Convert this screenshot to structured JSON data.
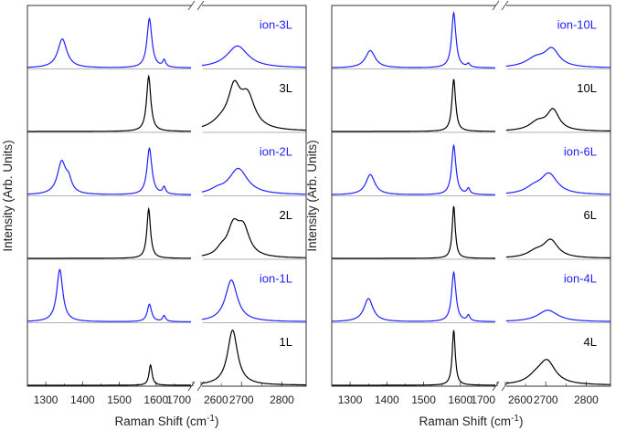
{
  "chart_data": [
    {
      "type": "line",
      "panel": "left",
      "xlabel": "Raman Shift (cm-1)",
      "xlabel_main": "Raman Shift (cm",
      "xlabel_sup": "-1",
      "xlabel_close": ")",
      "ylabel": "Intensity (Arb. Units)",
      "x_segments": [
        [
          1250,
          1700
        ],
        [
          2600,
          2860
        ]
      ],
      "axis_break": true,
      "x_ticks": [
        "1300",
        "1400",
        "1500",
        "1600",
        "1700",
        "2600",
        "2700",
        "2800"
      ],
      "x_tick_values": [
        1300,
        1400,
        1500,
        1600,
        1700,
        2600,
        2700,
        2800
      ],
      "series": [
        {
          "name": "ion-3L",
          "color": "#2020ff",
          "peaks": [
            [
              1345,
              0.5,
              15
            ],
            [
              1582,
              0.85,
              8
            ],
            [
              1622,
              0.12,
              5
            ],
            [
              2690,
              0.38,
              32
            ]
          ]
        },
        {
          "name": "3L",
          "color": "#000000",
          "peaks": [
            [
              1580,
              0.95,
              7
            ],
            [
              2682,
              0.65,
              18
            ],
            [
              2715,
              0.55,
              22
            ],
            [
              2650,
              0.12,
              30
            ]
          ]
        },
        {
          "name": "ion-2L",
          "color": "#2020ff",
          "peaks": [
            [
              1343,
              0.55,
              14
            ],
            [
              1362,
              0.2,
              10
            ],
            [
              1582,
              0.8,
              8
            ],
            [
              1622,
              0.12,
              5
            ],
            [
              2692,
              0.45,
              28
            ],
            [
              2640,
              0.06,
              20
            ]
          ]
        },
        {
          "name": "2L",
          "color": "#000000",
          "peaks": [
            [
              1580,
              0.85,
              6
            ],
            [
              2680,
              0.5,
              18
            ],
            [
              2705,
              0.45,
              18
            ],
            [
              2650,
              0.1,
              15
            ]
          ]
        },
        {
          "name": "ion-1L",
          "color": "#2020ff",
          "peaks": [
            [
              1338,
              0.9,
              10
            ],
            [
              1582,
              0.3,
              7
            ],
            [
              1622,
              0.1,
              5
            ],
            [
              2675,
              0.72,
              18
            ]
          ]
        },
        {
          "name": "1L",
          "color": "#000000",
          "peaks": [
            [
              1585,
              0.35,
              5
            ],
            [
              2678,
              0.95,
              15
            ]
          ]
        }
      ]
    },
    {
      "type": "line",
      "panel": "right",
      "xlabel": "Raman Shift (cm-1)",
      "xlabel_main": "Raman Shift (cm",
      "xlabel_sup": "-1",
      "xlabel_close": ")",
      "ylabel": "Intensity (Arb. Units)",
      "x_segments": [
        [
          1250,
          1700
        ],
        [
          2600,
          2860
        ]
      ],
      "axis_break": true,
      "x_ticks": [
        "1300",
        "1400",
        "1500",
        "1600",
        "1700",
        "2600",
        "2700",
        "2800"
      ],
      "x_tick_values": [
        1300,
        1400,
        1500,
        1600,
        1700,
        2600,
        2700,
        2800
      ],
      "series": [
        {
          "name": "ion-10L",
          "color": "#2020ff",
          "peaks": [
            [
              1355,
              0.3,
              16
            ],
            [
              1582,
              0.95,
              7
            ],
            [
              1622,
              0.06,
              5
            ],
            [
              2715,
              0.3,
              22
            ],
            [
              2675,
              0.15,
              30
            ]
          ]
        },
        {
          "name": "10L",
          "color": "#000000",
          "peaks": [
            [
              1582,
              0.9,
              6
            ],
            [
              2718,
              0.35,
              18
            ],
            [
              2680,
              0.15,
              25
            ]
          ]
        },
        {
          "name": "ion-6L",
          "color": "#2020ff",
          "peaks": [
            [
              1355,
              0.35,
              15
            ],
            [
              1582,
              0.85,
              7
            ],
            [
              1622,
              0.1,
              5
            ],
            [
              2708,
              0.35,
              25
            ],
            [
              2670,
              0.1,
              25
            ]
          ]
        },
        {
          "name": "6L",
          "color": "#000000",
          "peaks": [
            [
              1582,
              0.9,
              5
            ],
            [
              2712,
              0.3,
              22
            ],
            [
              2675,
              0.1,
              25
            ]
          ]
        },
        {
          "name": "ion-4L",
          "color": "#2020ff",
          "peaks": [
            [
              1350,
              0.4,
              15
            ],
            [
              1582,
              0.85,
              7
            ],
            [
              1622,
              0.1,
              5
            ],
            [
              2705,
              0.2,
              30
            ]
          ]
        },
        {
          "name": "4L",
          "color": "#000000",
          "peaks": [
            [
              1582,
              0.95,
              5
            ],
            [
              2703,
              0.4,
              25
            ],
            [
              2675,
              0.1,
              25
            ]
          ]
        }
      ]
    }
  ]
}
